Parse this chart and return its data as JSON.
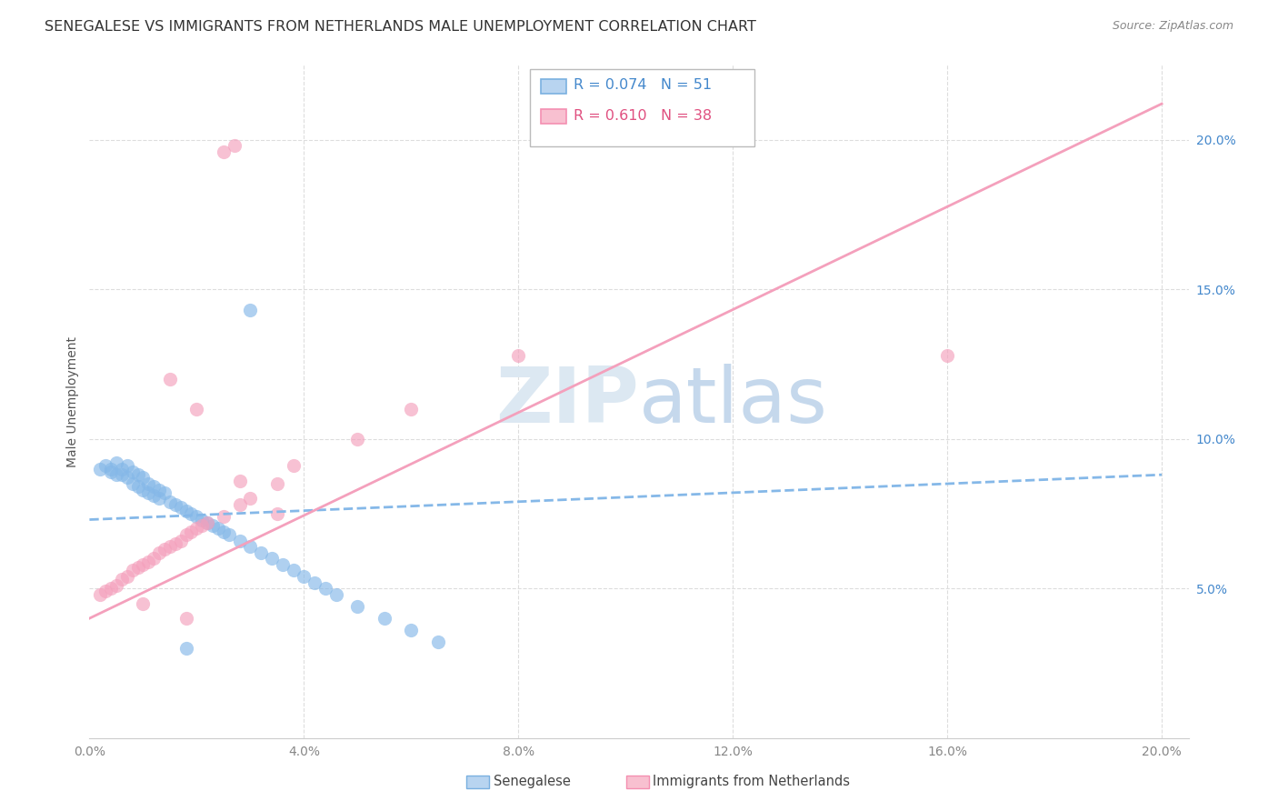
{
  "title": "SENEGALESE VS IMMIGRANTS FROM NETHERLANDS MALE UNEMPLOYMENT CORRELATION CHART",
  "source": "Source: ZipAtlas.com",
  "ylabel": "Male Unemployment",
  "xlim": [
    0.0,
    0.205
  ],
  "ylim": [
    0.0,
    0.225
  ],
  "xtick_vals": [
    0.0,
    0.04,
    0.08,
    0.12,
    0.16,
    0.2
  ],
  "ytick_vals": [
    0.05,
    0.1,
    0.15,
    0.2
  ],
  "blue_line_x": [
    0.0,
    0.2
  ],
  "blue_line_y": [
    0.073,
    0.088
  ],
  "pink_line_x": [
    0.0,
    0.2
  ],
  "pink_line_y": [
    0.04,
    0.212
  ],
  "bg_color": "#ffffff",
  "grid_color": "#dddddd",
  "scatter_blue": "#85b8e8",
  "scatter_pink": "#f4a0bc",
  "line_blue": "#85b8e8",
  "line_pink": "#f4a0bc",
  "title_fontsize": 11.5,
  "axis_label_fontsize": 10,
  "tick_fontsize": 10,
  "legend_R1": "R = 0.074",
  "legend_N1": "N = 51",
  "legend_R2": "R = 0.610",
  "legend_N2": "N = 38",
  "watermark_zip": "ZIP",
  "watermark_atlas": "atlas",
  "sen_x": [
    0.002,
    0.003,
    0.004,
    0.004,
    0.005,
    0.005,
    0.006,
    0.006,
    0.007,
    0.007,
    0.008,
    0.008,
    0.009,
    0.009,
    0.01,
    0.01,
    0.011,
    0.011,
    0.012,
    0.012,
    0.013,
    0.013,
    0.014,
    0.015,
    0.016,
    0.017,
    0.018,
    0.019,
    0.02,
    0.021,
    0.022,
    0.023,
    0.024,
    0.025,
    0.026,
    0.028,
    0.03,
    0.032,
    0.034,
    0.036,
    0.038,
    0.04,
    0.042,
    0.044,
    0.046,
    0.05,
    0.055,
    0.06,
    0.065,
    0.03,
    0.018
  ],
  "sen_y": [
    0.09,
    0.091,
    0.09,
    0.089,
    0.092,
    0.088,
    0.09,
    0.088,
    0.091,
    0.087,
    0.089,
    0.085,
    0.088,
    0.084,
    0.087,
    0.083,
    0.085,
    0.082,
    0.084,
    0.081,
    0.083,
    0.08,
    0.082,
    0.079,
    0.078,
    0.077,
    0.076,
    0.075,
    0.074,
    0.073,
    0.072,
    0.071,
    0.07,
    0.069,
    0.068,
    0.066,
    0.064,
    0.062,
    0.06,
    0.058,
    0.056,
    0.054,
    0.052,
    0.05,
    0.048,
    0.044,
    0.04,
    0.036,
    0.032,
    0.143,
    0.03
  ],
  "neth_x": [
    0.002,
    0.003,
    0.004,
    0.005,
    0.006,
    0.007,
    0.008,
    0.009,
    0.01,
    0.011,
    0.012,
    0.013,
    0.014,
    0.015,
    0.016,
    0.017,
    0.018,
    0.019,
    0.02,
    0.021,
    0.022,
    0.025,
    0.028,
    0.03,
    0.035,
    0.038,
    0.05,
    0.06,
    0.08,
    0.025,
    0.027,
    0.015,
    0.02,
    0.028,
    0.035,
    0.01,
    0.018,
    0.16
  ],
  "neth_y": [
    0.048,
    0.049,
    0.05,
    0.051,
    0.053,
    0.054,
    0.056,
    0.057,
    0.058,
    0.059,
    0.06,
    0.062,
    0.063,
    0.064,
    0.065,
    0.066,
    0.068,
    0.069,
    0.07,
    0.071,
    0.072,
    0.074,
    0.078,
    0.08,
    0.085,
    0.091,
    0.1,
    0.11,
    0.128,
    0.196,
    0.198,
    0.12,
    0.11,
    0.086,
    0.075,
    0.045,
    0.04,
    0.128
  ]
}
